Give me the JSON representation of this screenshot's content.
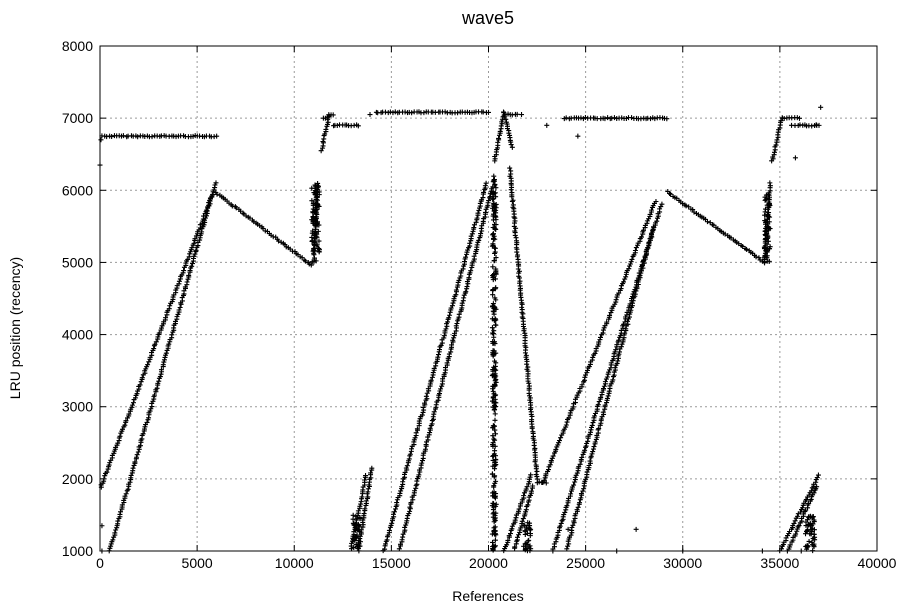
{
  "chart_data": {
    "type": "scatter",
    "title": "wave5",
    "xlabel": "References",
    "ylabel": "LRU position (recency)",
    "xlim": [
      0,
      40000
    ],
    "ylim": [
      1000,
      8000
    ],
    "grid": true,
    "x_ticks": [
      0,
      5000,
      10000,
      15000,
      20000,
      25000,
      30000,
      35000,
      40000
    ],
    "y_ticks": [
      1000,
      2000,
      3000,
      4000,
      5000,
      6000,
      7000,
      8000
    ],
    "x_tick_labels": [
      "0",
      "5000",
      "10000",
      "15000",
      "20000",
      "25000",
      "30000",
      "35000",
      "40000"
    ],
    "y_tick_labels": [
      "1000",
      "2000",
      "3000",
      "4000",
      "5000",
      "6000",
      "7000",
      "8000"
    ],
    "marker": "+",
    "marker_color": "#000000",
    "segments": [
      {
        "from": [
          0,
          6750
        ],
        "to": [
          6000,
          6750
        ]
      },
      {
        "from": [
          0,
          1850
        ],
        "to": [
          5800,
          5950
        ]
      },
      {
        "from": [
          500,
          1000
        ],
        "to": [
          5950,
          6100
        ]
      },
      {
        "from": [
          5950,
          5970
        ],
        "to": [
          10900,
          4960
        ]
      },
      {
        "from": [
          11000,
          5000
        ],
        "to": [
          11200,
          6100
        ]
      },
      {
        "from": [
          11400,
          6550
        ],
        "to": [
          11800,
          7050
        ]
      },
      {
        "from": [
          11600,
          7000
        ],
        "to": [
          12000,
          7050
        ]
      },
      {
        "from": [
          12000,
          6900
        ],
        "to": [
          13300,
          6900
        ]
      },
      {
        "from": [
          14200,
          7080
        ],
        "to": [
          20000,
          7080
        ]
      },
      {
        "from": [
          14600,
          1000
        ],
        "to": [
          19900,
          6100
        ]
      },
      {
        "from": [
          15400,
          1000
        ],
        "to": [
          20200,
          6050
        ]
      },
      {
        "from": [
          12900,
          1000
        ],
        "to": [
          13700,
          2050
        ]
      },
      {
        "from": [
          13300,
          1000
        ],
        "to": [
          14000,
          2150
        ]
      },
      {
        "from": [
          20300,
          6400
        ],
        "to": [
          20800,
          7080
        ]
      },
      {
        "from": [
          20800,
          7080
        ],
        "to": [
          21200,
          6600
        ]
      },
      {
        "from": [
          21000,
          7050
        ],
        "to": [
          21500,
          7050
        ]
      },
      {
        "from": [
          21100,
          6300
        ],
        "to": [
          22500,
          2000
        ]
      },
      {
        "from": [
          22500,
          1950
        ],
        "to": [
          23000,
          1950
        ]
      },
      {
        "from": [
          20800,
          1000
        ],
        "to": [
          22200,
          2050
        ]
      },
      {
        "from": [
          21300,
          1000
        ],
        "to": [
          22300,
          1900
        ]
      },
      {
        "from": [
          22800,
          1950
        ],
        "to": [
          28600,
          5850
        ]
      },
      {
        "from": [
          23300,
          1000
        ],
        "to": [
          28900,
          5800
        ]
      },
      {
        "from": [
          24000,
          1000
        ],
        "to": [
          28500,
          5500
        ]
      },
      {
        "from": [
          23900,
          7000
        ],
        "to": [
          29200,
          7000
        ]
      },
      {
        "from": [
          29200,
          5980
        ],
        "to": [
          34200,
          5000
        ]
      },
      {
        "from": [
          34200,
          5000
        ],
        "to": [
          34500,
          6100
        ]
      },
      {
        "from": [
          34600,
          6400
        ],
        "to": [
          35100,
          7000
        ]
      },
      {
        "from": [
          35100,
          7000
        ],
        "to": [
          36000,
          7000
        ]
      },
      {
        "from": [
          35800,
          6900
        ],
        "to": [
          37000,
          6900
        ]
      },
      {
        "from": [
          35000,
          1000
        ],
        "to": [
          37000,
          2050
        ]
      },
      {
        "from": [
          35400,
          1000
        ],
        "to": [
          36900,
          1900
        ]
      }
    ],
    "clusters": [
      {
        "x": [
          20200,
          20400
        ],
        "y": [
          1000,
          6200
        ]
      },
      {
        "x": [
          10900,
          11300
        ],
        "y": [
          5000,
          6100
        ]
      },
      {
        "x": [
          34200,
          34500
        ],
        "y": [
          5000,
          6000
        ]
      },
      {
        "x": [
          13000,
          13400
        ],
        "y": [
          1000,
          1500
        ]
      },
      {
        "x": [
          21800,
          22200
        ],
        "y": [
          1000,
          1400
        ]
      },
      {
        "x": [
          36300,
          36800
        ],
        "y": [
          1000,
          1500
        ]
      }
    ],
    "points": [
      [
        0,
        6350
      ],
      [
        50,
        6700
      ],
      [
        100,
        1350
      ],
      [
        100,
        1000
      ],
      [
        11500,
        7000
      ],
      [
        13900,
        7050
      ],
      [
        21700,
        7050
      ],
      [
        23000,
        6900
      ],
      [
        24600,
        6750
      ],
      [
        24100,
        1300
      ],
      [
        27600,
        1300
      ],
      [
        30000,
        1000
      ],
      [
        34100,
        1000
      ],
      [
        35800,
        6450
      ],
      [
        36100,
        1000
      ],
      [
        37100,
        7150
      ],
      [
        26600,
        1000
      ],
      [
        35600,
        6900
      ],
      [
        36900,
        6900
      ]
    ]
  }
}
